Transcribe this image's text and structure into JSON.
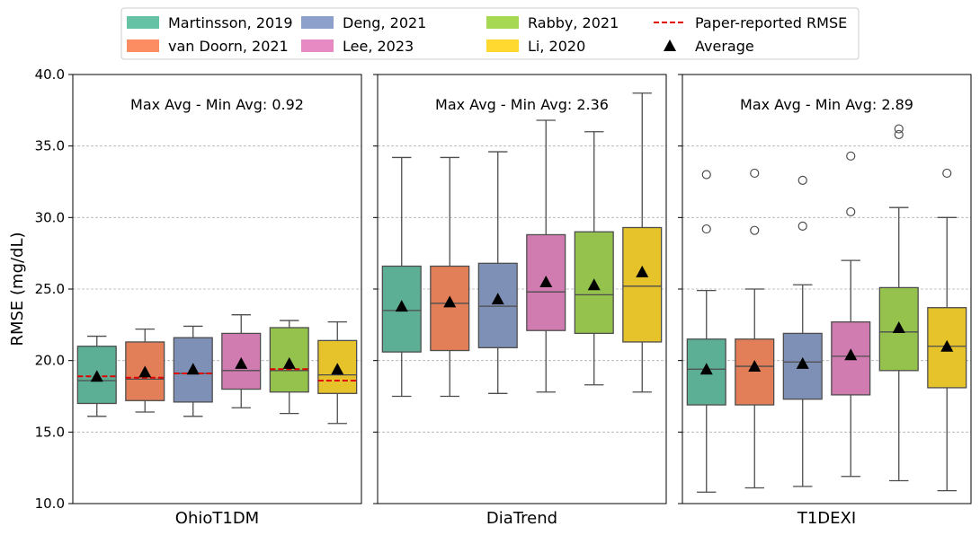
{
  "figure": {
    "ylabel": "RMSE (mg/dL)"
  },
  "legend": {
    "placement": "top-center",
    "entries": [
      {
        "label": "Martinsson, 2019",
        "kind": "patch",
        "color": "#66c2a5"
      },
      {
        "label": "van Doorn, 2021",
        "kind": "patch",
        "color": "#fc8d62"
      },
      {
        "label": "Deng, 2021",
        "kind": "patch",
        "color": "#8da0cb"
      },
      {
        "label": "Lee, 2023",
        "kind": "patch",
        "color": "#e78ac3"
      },
      {
        "label": "Rabby, 2021",
        "kind": "patch",
        "color": "#a6d854"
      },
      {
        "label": "Li, 2020",
        "kind": "patch",
        "color": "#ffd92f"
      },
      {
        "label": "Paper-reported RMSE",
        "kind": "dashed-line",
        "color": "#e00000"
      },
      {
        "label": "Average",
        "kind": "triangle-marker",
        "color": "#000000"
      }
    ]
  },
  "chart_data": {
    "type": "box",
    "ylim": [
      10.0,
      40.0
    ],
    "yticks": [
      "10.0",
      "15.0",
      "20.0",
      "25.0",
      "30.0",
      "35.0",
      "40.0"
    ],
    "grid": "horizontal dashed",
    "series_names": [
      "Martinsson, 2019",
      "van Doorn, 2021",
      "Deng, 2021",
      "Lee, 2023",
      "Rabby, 2021",
      "Li, 2020"
    ],
    "colors": [
      "#66c2a5",
      "#fc8d62",
      "#8da0cb",
      "#e78ac3",
      "#a6d854",
      "#ffd92f"
    ],
    "panels": [
      {
        "xlabel": "OhioT1DM",
        "annotation": "Max Avg - Min Avg: 0.92",
        "boxes": [
          {
            "whisker_low": 16.1,
            "q1": 17.0,
            "median": 18.6,
            "q3": 21.0,
            "whisker_high": 21.7,
            "mean": 18.9,
            "outliers": [],
            "paper_rmse": 18.9
          },
          {
            "whisker_low": 16.4,
            "q1": 17.2,
            "median": 18.7,
            "q3": 21.3,
            "whisker_high": 22.2,
            "mean": 19.2,
            "outliers": [],
            "paper_rmse": 18.8
          },
          {
            "whisker_low": 16.1,
            "q1": 17.1,
            "median": 19.1,
            "q3": 21.6,
            "whisker_high": 22.4,
            "mean": 19.4,
            "outliers": [],
            "paper_rmse": 19.1
          },
          {
            "whisker_low": 16.7,
            "q1": 18.0,
            "median": 19.3,
            "q3": 21.9,
            "whisker_high": 23.2,
            "mean": 19.8,
            "outliers": [],
            "paper_rmse": null
          },
          {
            "whisker_low": 16.3,
            "q1": 17.8,
            "median": 19.3,
            "q3": 22.3,
            "whisker_high": 22.8,
            "mean": 19.8,
            "outliers": [],
            "paper_rmse": 19.4
          },
          {
            "whisker_low": 15.6,
            "q1": 17.7,
            "median": 19.0,
            "q3": 21.4,
            "whisker_high": 22.7,
            "mean": 19.4,
            "outliers": [],
            "paper_rmse": 18.6
          }
        ]
      },
      {
        "xlabel": "DiaTrend",
        "annotation": "Max Avg - Min Avg: 2.36",
        "boxes": [
          {
            "whisker_low": 17.5,
            "q1": 20.6,
            "median": 23.5,
            "q3": 26.6,
            "whisker_high": 34.2,
            "mean": 23.8,
            "outliers": [],
            "paper_rmse": null
          },
          {
            "whisker_low": 17.5,
            "q1": 20.7,
            "median": 24.0,
            "q3": 26.6,
            "whisker_high": 34.2,
            "mean": 24.1,
            "outliers": [],
            "paper_rmse": null
          },
          {
            "whisker_low": 17.7,
            "q1": 20.9,
            "median": 23.8,
            "q3": 26.8,
            "whisker_high": 34.6,
            "mean": 24.3,
            "outliers": [],
            "paper_rmse": null
          },
          {
            "whisker_low": 17.8,
            "q1": 22.1,
            "median": 24.8,
            "q3": 28.8,
            "whisker_high": 36.8,
            "mean": 25.5,
            "outliers": [],
            "paper_rmse": null
          },
          {
            "whisker_low": 18.3,
            "q1": 21.9,
            "median": 24.6,
            "q3": 29.0,
            "whisker_high": 36.0,
            "mean": 25.3,
            "outliers": [],
            "paper_rmse": null
          },
          {
            "whisker_low": 17.8,
            "q1": 21.3,
            "median": 25.2,
            "q3": 29.3,
            "whisker_high": 38.7,
            "mean": 26.2,
            "outliers": [],
            "paper_rmse": null
          }
        ]
      },
      {
        "xlabel": "T1DEXI",
        "annotation": "Max Avg - Min Avg: 2.89",
        "boxes": [
          {
            "whisker_low": 10.8,
            "q1": 16.9,
            "median": 19.4,
            "q3": 21.5,
            "whisker_high": 24.9,
            "mean": 19.4,
            "outliers": [
              29.2,
              33.0
            ],
            "paper_rmse": null
          },
          {
            "whisker_low": 11.1,
            "q1": 16.9,
            "median": 19.6,
            "q3": 21.5,
            "whisker_high": 25.0,
            "mean": 19.6,
            "outliers": [
              29.1,
              33.1
            ],
            "paper_rmse": null
          },
          {
            "whisker_low": 11.2,
            "q1": 17.3,
            "median": 19.9,
            "q3": 21.9,
            "whisker_high": 25.3,
            "mean": 19.8,
            "outliers": [
              29.4,
              32.6
            ],
            "paper_rmse": null
          },
          {
            "whisker_low": 11.9,
            "q1": 17.6,
            "median": 20.3,
            "q3": 22.7,
            "whisker_high": 27.0,
            "mean": 20.4,
            "outliers": [
              30.4,
              34.3
            ],
            "paper_rmse": null
          },
          {
            "whisker_low": 11.6,
            "q1": 19.3,
            "median": 22.0,
            "q3": 25.1,
            "whisker_high": 30.7,
            "mean": 22.3,
            "outliers": [
              35.8,
              36.2
            ],
            "paper_rmse": null
          },
          {
            "whisker_low": 10.9,
            "q1": 18.1,
            "median": 21.0,
            "q3": 23.7,
            "whisker_high": 30.0,
            "mean": 21.0,
            "outliers": [
              33.1
            ],
            "paper_rmse": null
          }
        ]
      }
    ]
  }
}
